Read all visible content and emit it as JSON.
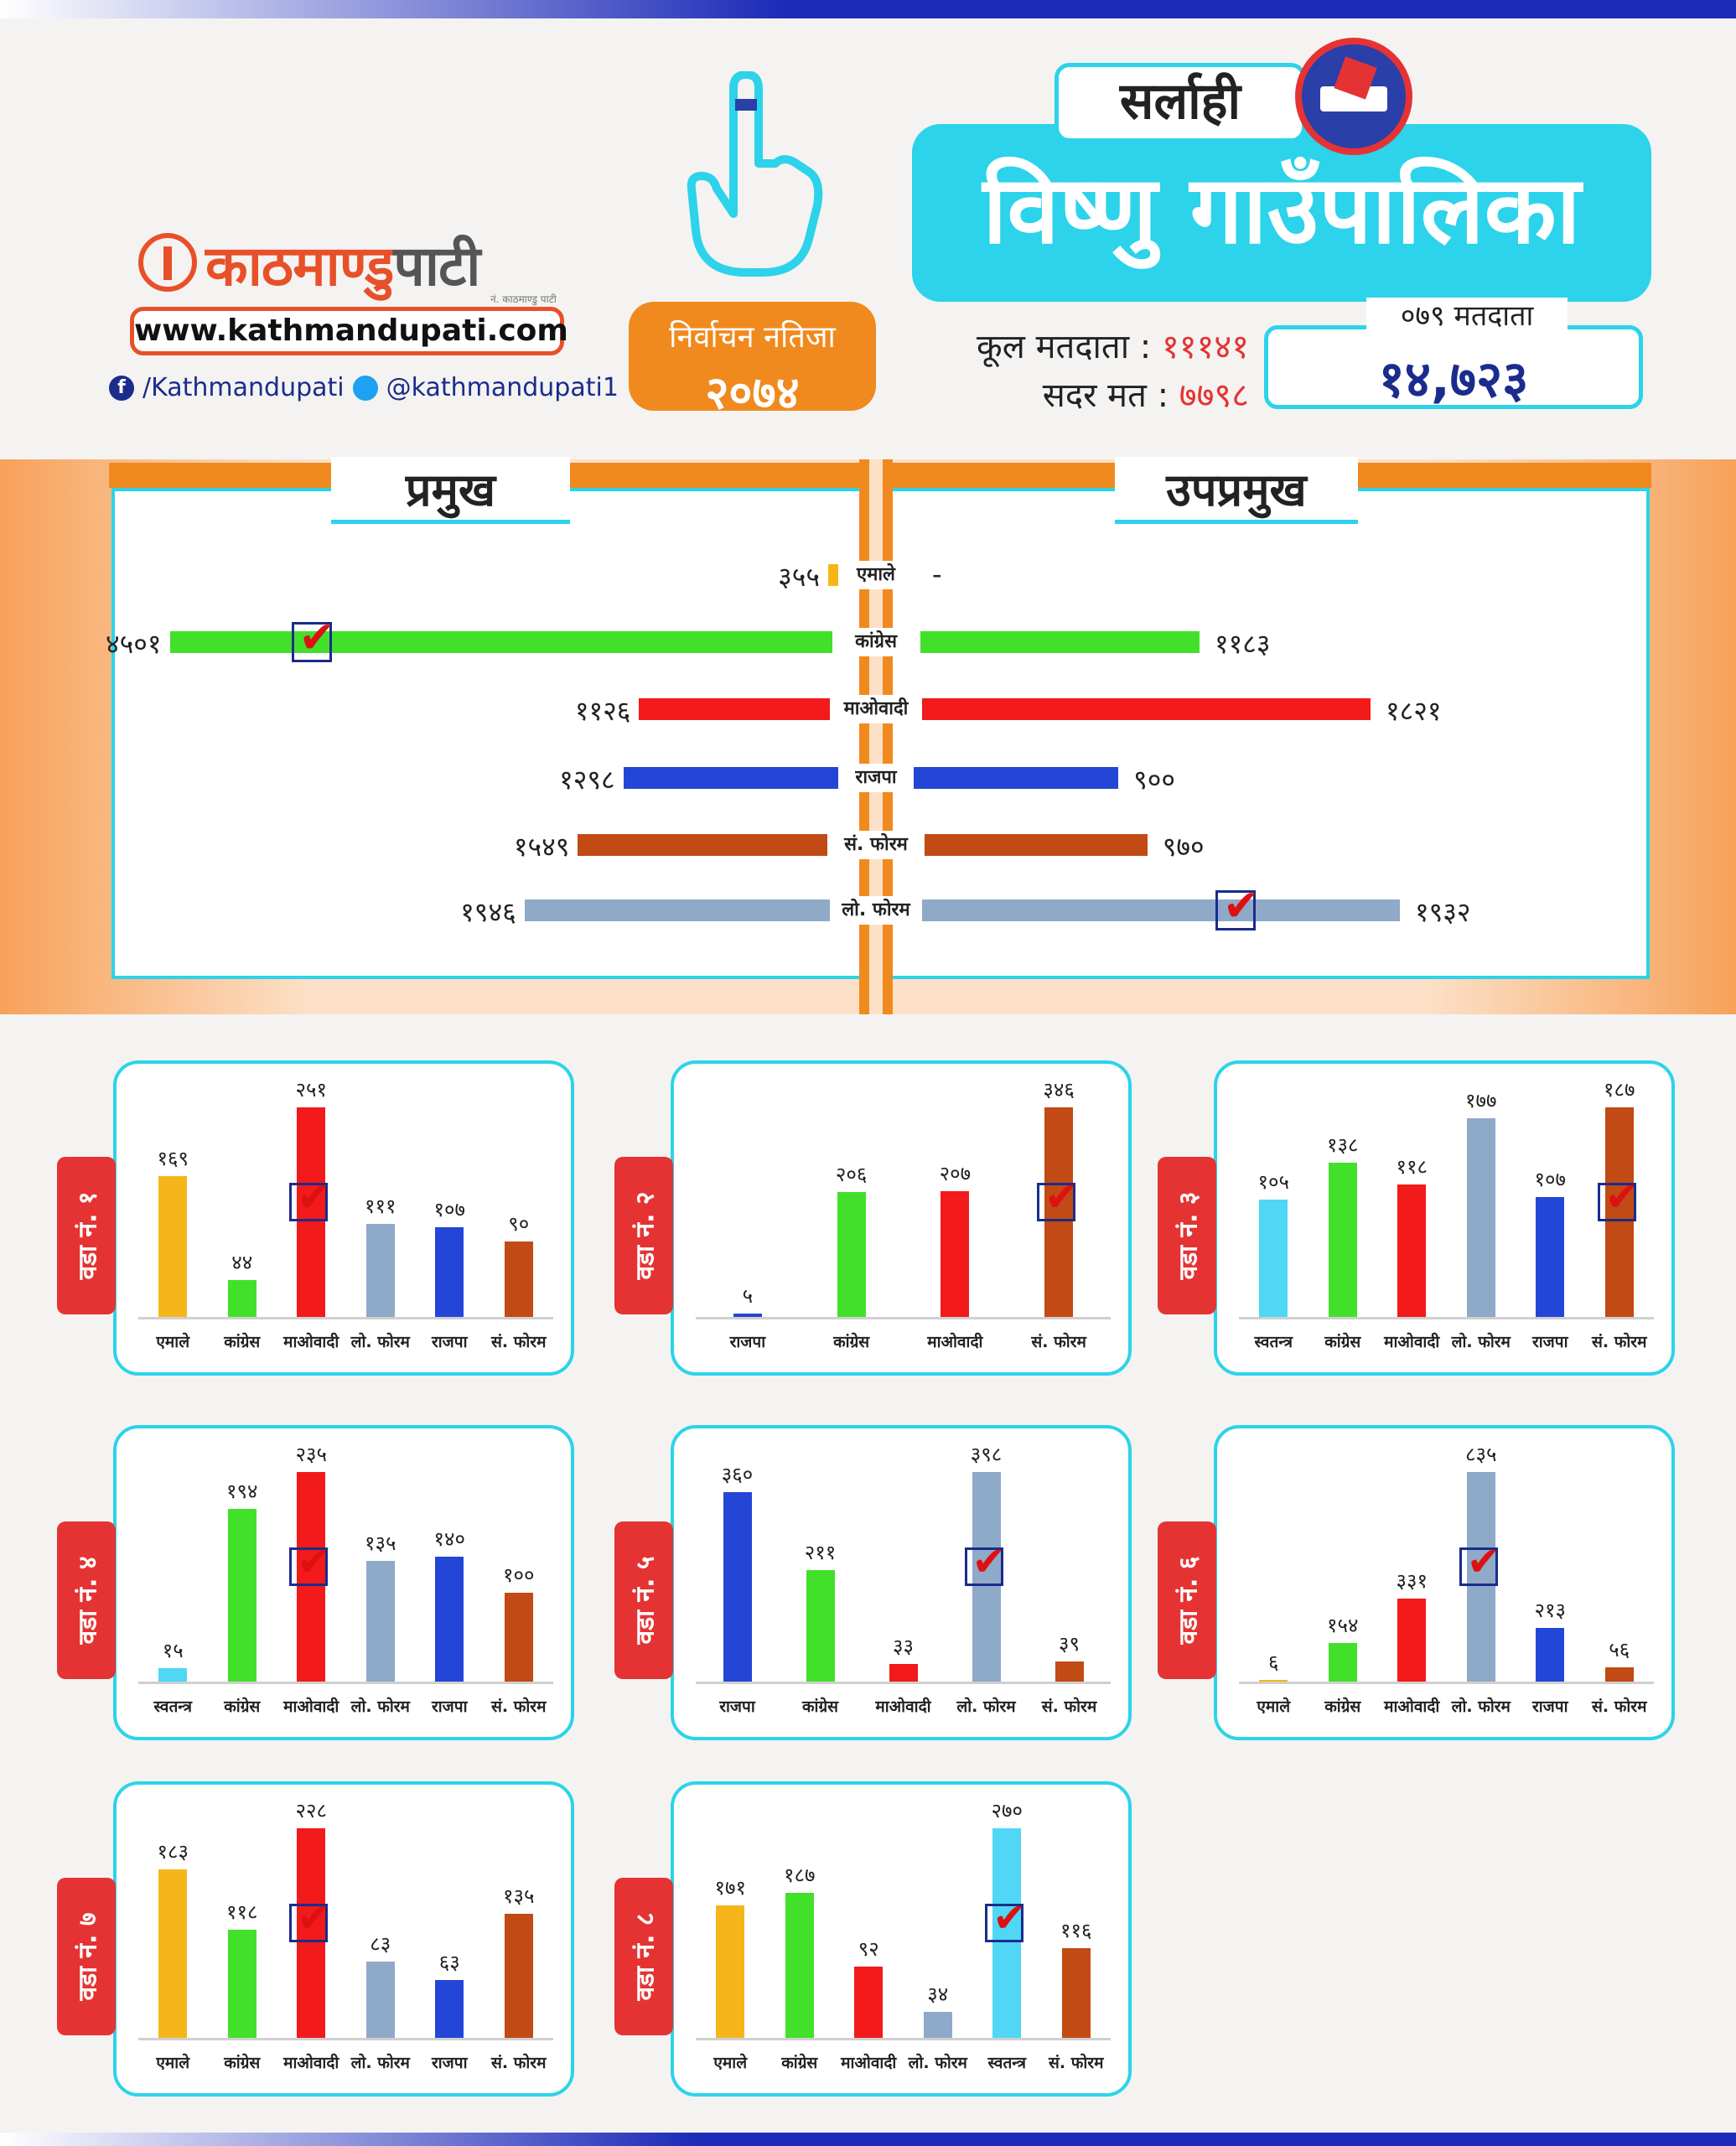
{
  "header": {
    "logo_text_1": "काठमाण्डु",
    "logo_text_2": "पाटी",
    "logo_tagline": "नं. काठमाण्डु पाटी",
    "url": "www.kathmandupati.com",
    "facebook": "/Kathmandupati",
    "twitter": "@kathmandupati1",
    "result_title": "निर्वाचन नतिजा",
    "result_year": "२०७४",
    "district": "सर्लाही",
    "municipality": "विष्णु गाउँपालिका",
    "total_voters_label": "कूल मतदाता :",
    "total_voters": "१११४१",
    "valid_votes_label": "सदर मत :",
    "valid_votes": "७७९८",
    "voters_079_label": "०७९ मतदाता",
    "voters_079": "१४,७२३"
  },
  "colors": {
    "UML": "#f6b619",
    "Congress": "#43e02b",
    "Maoist": "#f21a1a",
    "RJP": "#2446d6",
    "SanghiyaForum": "#c24a14",
    "LoktantrikForum": "#8fa9c8",
    "Independent": "#4fd7f5",
    "accent": "#2cd3ea",
    "orange": "#f08a1e"
  },
  "chart_data": [
    {
      "type": "bar",
      "orientation": "horizontal-butterfly",
      "left_title": "प्रमुख",
      "right_title": "उपप्रमुख",
      "categories": [
        "एमाले",
        "कांग्रेस",
        "माओवादी",
        "राजपा",
        "सं. फोरम",
        "लो. फोरम"
      ],
      "left_labels": [
        "३५५",
        "४५०१",
        "११२६",
        "१२९८",
        "१५४९",
        "१९४६"
      ],
      "right_labels": [
        "-",
        "११८३",
        "१८२१",
        "९००",
        "९७०",
        "१९३२"
      ],
      "series": [
        {
          "name": "प्रमुख",
          "values": [
            355,
            4501,
            1126,
            1298,
            1549,
            1946
          ],
          "winner_index": 1
        },
        {
          "name": "उपप्रमुख",
          "values": [
            null,
            1183,
            1821,
            900,
            970,
            1932
          ],
          "winner_index": 5
        }
      ]
    },
    {
      "type": "bar",
      "ward": "वडा नं. १",
      "categories": [
        "एमाले",
        "कांग्रेस",
        "माओवादी",
        "लो. फोरम",
        "राजपा",
        "सं. फोरम"
      ],
      "labels": [
        "१६९",
        "४४",
        "२५१",
        "१११",
        "१०७",
        "९०"
      ],
      "values": [
        169,
        44,
        251,
        111,
        107,
        90
      ],
      "winner_index": 2
    },
    {
      "type": "bar",
      "ward": "वडा नं. २",
      "categories": [
        "राजपा",
        "कांग्रेस",
        "माओवादी",
        "सं. फोरम"
      ],
      "labels": [
        "५",
        "२०६",
        "२०७",
        "३४६"
      ],
      "values": [
        5,
        206,
        207,
        346
      ],
      "winner_index": 3
    },
    {
      "type": "bar",
      "ward": "वडा नं. ३",
      "categories": [
        "स्वतन्त्र",
        "कांग्रेस",
        "माओवादी",
        "लो. फोरम",
        "राजपा",
        "सं. फोरम"
      ],
      "labels": [
        "१०५",
        "१३८",
        "११८",
        "१७७",
        "१०७",
        "१८७"
      ],
      "values": [
        105,
        138,
        118,
        177,
        107,
        187
      ],
      "winner_index": 5
    },
    {
      "type": "bar",
      "ward": "वडा नं. ४",
      "categories": [
        "स्वतन्त्र",
        "कांग्रेस",
        "माओवादी",
        "लो. फोरम",
        "राजपा",
        "सं. फोरम"
      ],
      "labels": [
        "१५",
        "१९४",
        "२३५",
        "१३५",
        "१४०",
        "१००"
      ],
      "values": [
        15,
        194,
        235,
        135,
        140,
        100
      ],
      "winner_index": 2
    },
    {
      "type": "bar",
      "ward": "वडा नं. ५",
      "categories": [
        "राजपा",
        "कांग्रेस",
        "माओवादी",
        "लो. फोरम",
        "सं. फोरम"
      ],
      "labels": [
        "३६०",
        "२११",
        "३३",
        "३९८",
        "३९"
      ],
      "values": [
        360,
        211,
        33,
        398,
        39
      ],
      "winner_index": 3
    },
    {
      "type": "bar",
      "ward": "वडा नं. ६",
      "categories": [
        "एमाले",
        "कांग्रेस",
        "माओवादी",
        "लो. फोरम",
        "राजपा",
        "सं. फोरम"
      ],
      "labels": [
        "६",
        "१५४",
        "३३१",
        "८३५",
        "२१३",
        "५६"
      ],
      "values": [
        6,
        154,
        331,
        835,
        213,
        56
      ],
      "winner_index": 3
    },
    {
      "type": "bar",
      "ward": "वडा नं. ७",
      "categories": [
        "एमाले",
        "कांग्रेस",
        "माओवादी",
        "लो. फोरम",
        "राजपा",
        "सं. फोरम"
      ],
      "labels": [
        "१८३",
        "११८",
        "२२८",
        "८३",
        "६३",
        "१३५"
      ],
      "values": [
        183,
        118,
        228,
        83,
        63,
        135
      ],
      "winner_index": 2
    },
    {
      "type": "bar",
      "ward": "वडा नं. ८",
      "categories": [
        "एमाले",
        "कांग्रेस",
        "माओवादी",
        "लो. फोरम",
        "स्वतन्त्र",
        "सं. फोरम"
      ],
      "labels": [
        "१७१",
        "१८७",
        "९२",
        "३४",
        "२७०",
        "११६"
      ],
      "values": [
        171,
        187,
        92,
        34,
        270,
        116
      ],
      "winner_index": 4
    }
  ]
}
